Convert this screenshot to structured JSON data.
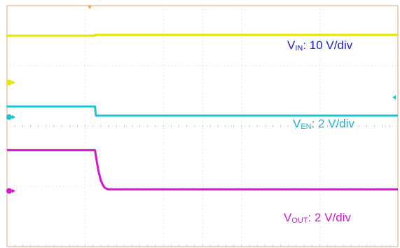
{
  "chart_data": {
    "type": "line",
    "grid": true,
    "series": [
      {
        "label_main": "V",
        "label_sub": "IN",
        "label_rest": ": 10 V/div",
        "color": "#e6e600",
        "points": [
          [
            0,
            7.0
          ],
          [
            4.5,
            7.0
          ],
          [
            4.5,
            7.03
          ],
          [
            20,
            7.03
          ]
        ]
      },
      {
        "label_main": "V",
        "label_sub": "EN",
        "label_rest": ": 2 V/div",
        "color": "#19c3d2",
        "points": [
          [
            0,
            4.65
          ],
          [
            4.5,
            4.65
          ],
          [
            4.55,
            4.35
          ],
          [
            20,
            4.35
          ]
        ]
      },
      {
        "label_main": "V",
        "label_sub": "OUT",
        "label_rest": ": 2 V/div",
        "color": "#d416d4",
        "points": [
          [
            0,
            3.2
          ],
          [
            4.5,
            3.2
          ],
          [
            4.6,
            2.8
          ],
          [
            4.7,
            2.45
          ],
          [
            4.8,
            2.2
          ],
          [
            4.9,
            2.05
          ],
          [
            5.0,
            1.95
          ],
          [
            5.2,
            1.9
          ],
          [
            20,
            1.9
          ]
        ]
      }
    ],
    "ground_markers": [
      {
        "color": "#e6e600",
        "level": 5.45
      },
      {
        "color": "#19c3d2",
        "level": 4.3
      },
      {
        "color": "#d416d4",
        "level": 1.85
      }
    ]
  }
}
